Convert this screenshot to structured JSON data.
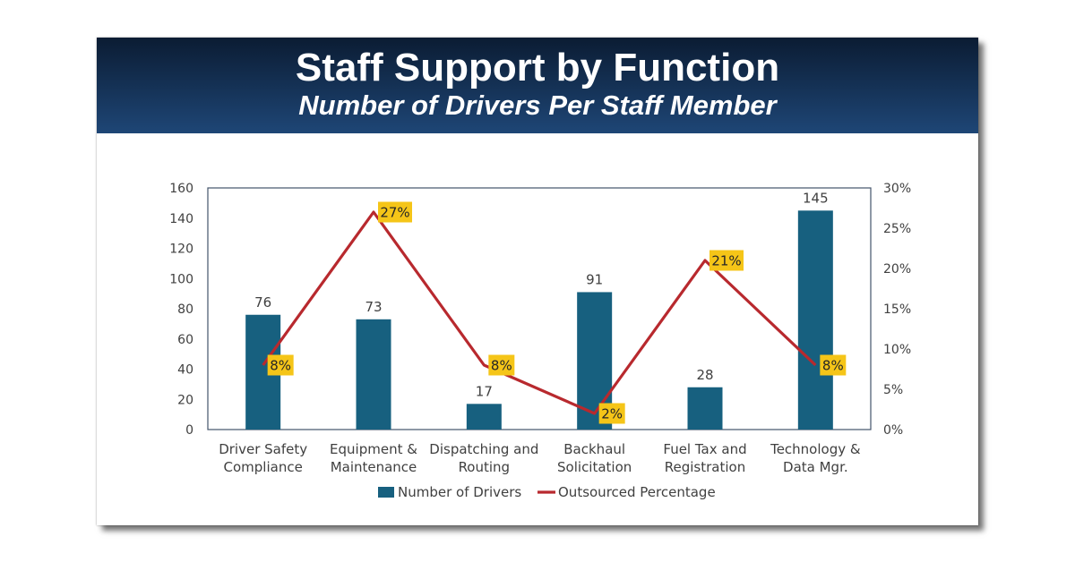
{
  "header": {
    "title": "Staff Support by Function",
    "subtitle": "Number of Drivers Per Staff Member"
  },
  "colors": {
    "bar": "#17607f",
    "line": "#b8292e",
    "label_bg": "#f5c518",
    "axis": "#44546a"
  },
  "chart_data": {
    "type": "bar",
    "title": "Staff Support by Function",
    "subtitle": "Number of Drivers Per Staff Member",
    "categories": [
      [
        "Driver Safety",
        "Compliance"
      ],
      [
        "Equipment &",
        "Maintenance"
      ],
      [
        "Dispatching and",
        "Routing"
      ],
      [
        "Backhaul",
        "Solicitation"
      ],
      [
        "Fuel Tax and",
        "Registration"
      ],
      [
        "Technology &",
        "Data Mgr."
      ]
    ],
    "series": [
      {
        "name": "Number of Drivers",
        "type": "bar",
        "axis": "left",
        "values": [
          76,
          73,
          17,
          91,
          28,
          145
        ],
        "labels": [
          "76",
          "73",
          "17",
          "91",
          "28",
          "145"
        ]
      },
      {
        "name": "Outsourced Percentage",
        "type": "line",
        "axis": "right",
        "values": [
          8,
          27,
          8,
          2,
          21,
          8
        ],
        "labels": [
          "8%",
          "27%",
          "8%",
          "2%",
          "21%",
          "8%"
        ]
      }
    ],
    "ylim": [
      0,
      160
    ],
    "yticks": [
      "0",
      "20",
      "40",
      "60",
      "80",
      "100",
      "120",
      "140",
      "160"
    ],
    "y2lim": [
      0,
      30
    ],
    "y2ticks": [
      "0%",
      "5%",
      "10%",
      "15%",
      "20%",
      "25%",
      "30%"
    ],
    "grid": false,
    "legend_position": "bottom"
  }
}
